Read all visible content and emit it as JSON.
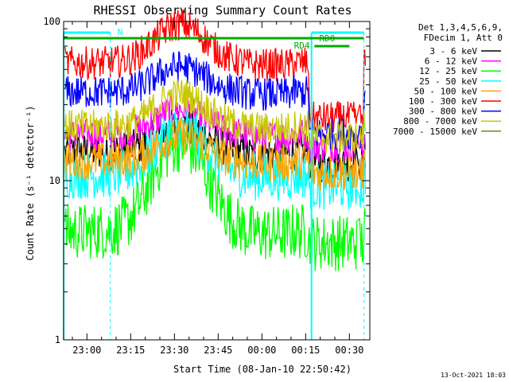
{
  "chart_data": {
    "type": "line",
    "title": "RHESSI Observing Summary Count Rates",
    "xlabel": "Start Time (08-Jan-10 22:50:42)",
    "ylabel": "Count Rate (s⁻¹ detector⁻¹)",
    "yscale": "log",
    "ylim": [
      1,
      100
    ],
    "ytick_labels": [
      "1",
      "10",
      "100"
    ],
    "xlim_minutes": [
      -8,
      33
    ],
    "xtick_labels": [
      "23:00",
      "23:15",
      "23:30",
      "23:45",
      "00:00",
      "00:15",
      "00:30"
    ],
    "xtick_minutes": [
      0,
      15,
      30,
      45,
      60,
      75,
      90
    ],
    "x_minor_step_minutes": 5,
    "grid": false,
    "legend_header": [
      "Det 1,3,4,5,6,9,",
      "FDecim 1, Att 0"
    ],
    "legend_position": "right",
    "footer_date": "13-Oct-2021 18:03",
    "series": [
      {
        "name": "3 - 6 keV",
        "color": "#000000",
        "base": 15.2,
        "peak": 22,
        "noise": 0.04
      },
      {
        "name": "6 - 12 keV",
        "color": "#ff00ff",
        "base": 19.5,
        "peak": 28,
        "noise": 0.035
      },
      {
        "name": "12 - 25 keV",
        "color": "#00ff00",
        "base": 4.8,
        "peak": 17,
        "noise": 0.06
      },
      {
        "name": "25 - 50 keV",
        "color": "#00ffff",
        "base": 10.8,
        "peak": 21,
        "noise": 0.05
      },
      {
        "name": "50 - 100 keV",
        "color": "#ffa500",
        "base": 13.3,
        "peak": 19,
        "noise": 0.04
      },
      {
        "name": "100 - 300 keV",
        "color": "#ff0000",
        "base": 55,
        "peak": 96,
        "noise": 0.035
      },
      {
        "name": "300 - 800 keV",
        "color": "#0000ff",
        "base": 36,
        "peak": 52,
        "noise": 0.035
      },
      {
        "name": "800 - 7000 keV",
        "color": "#c8c800",
        "base": 22,
        "peak": 35,
        "noise": 0.035
      },
      {
        "name": "7000 - 15000 keV",
        "color": "#808000",
        "base": 10,
        "peak": 10,
        "noise": 0.0
      }
    ],
    "annotations": [
      {
        "text": "N",
        "color": "#00ffff",
        "x_start": -8,
        "x_end": 8,
        "dashed_at": 8
      },
      {
        "text": "RD0",
        "color": "#00ffff",
        "x_start": 77,
        "x_end": 95,
        "dashed_at": 95
      },
      {
        "text": "RD4",
        "color": "#00aa00"
      }
    ]
  }
}
